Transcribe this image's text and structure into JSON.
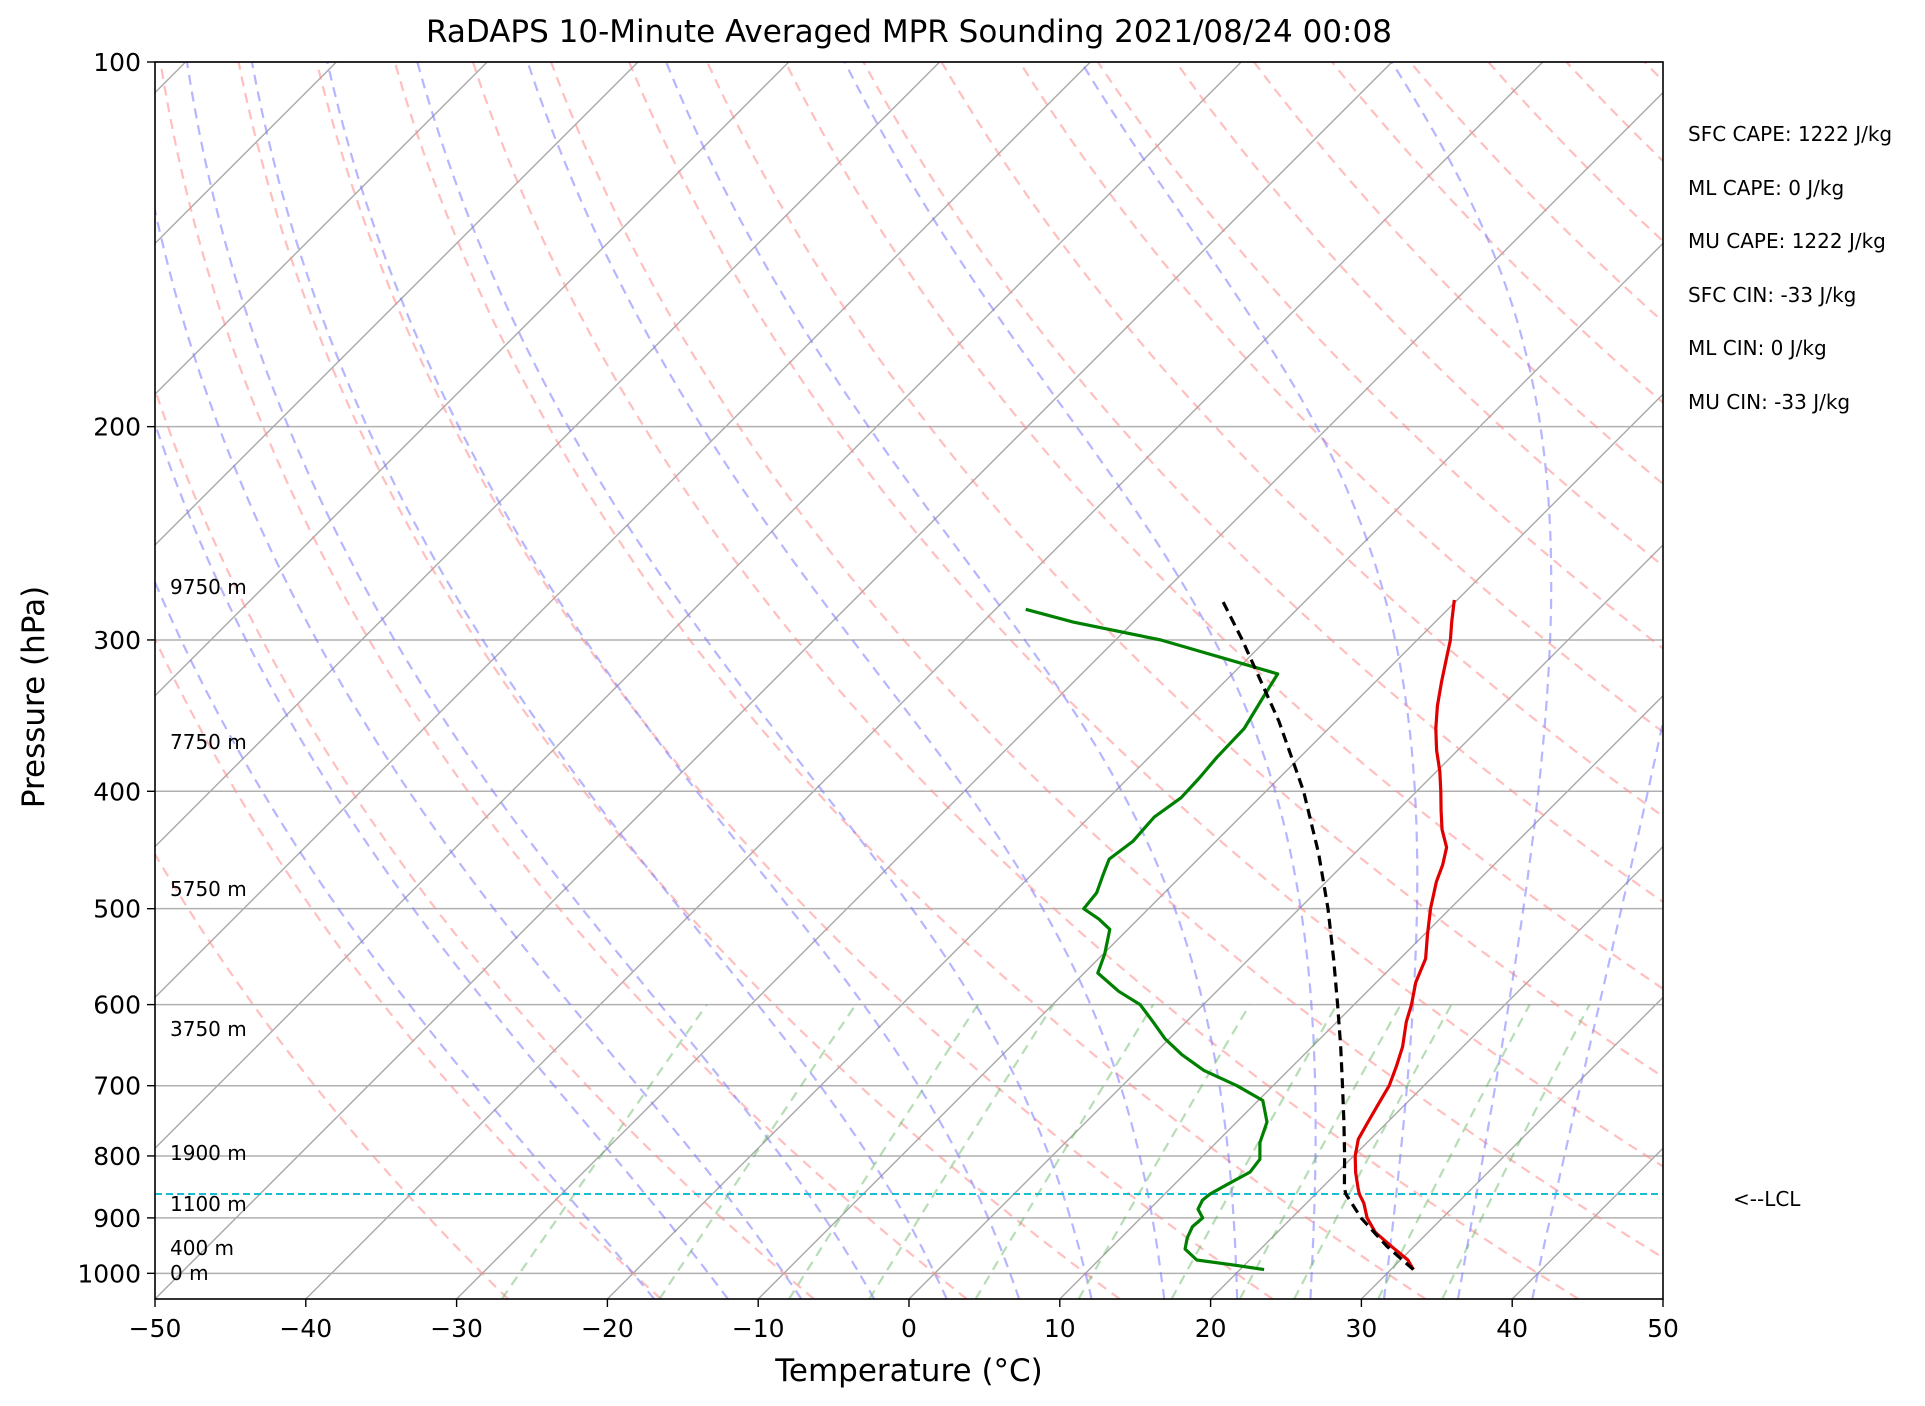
{
  "chart_data": {
    "type": "line",
    "chart_kind": "skew-T log-P sounding",
    "title": "RaDAPS 10-Minute Averaged MPR Sounding 2021/08/24 00:08",
    "xlabel": "Temperature (°C)",
    "ylabel": "Pressure (hPa)",
    "xlim": [
      -50,
      50
    ],
    "ylim": [
      1050,
      100
    ],
    "y_scale": "log",
    "x_ticks": [
      -50,
      -40,
      -30,
      -20,
      -10,
      0,
      10,
      20,
      30,
      40,
      50
    ],
    "x_tick_labels": [
      "−50",
      "−40",
      "−30",
      "−20",
      "−10",
      "0",
      "10",
      "20",
      "30",
      "40",
      "50"
    ],
    "y_ticks": [
      100,
      200,
      300,
      400,
      500,
      600,
      700,
      800,
      900,
      1000
    ],
    "y_tick_labels": [
      "100",
      "200",
      "300",
      "400",
      "500",
      "600",
      "700",
      "800",
      "900",
      "1000"
    ],
    "grid": true,
    "series": [
      {
        "role": "temperature",
        "color": "#e00000",
        "style": "solid",
        "points": [
          [
            993,
            31.5
          ],
          [
            975,
            30.5
          ],
          [
            950,
            28.5
          ],
          [
            925,
            26.5
          ],
          [
            900,
            25.0
          ],
          [
            875,
            23.8
          ],
          [
            860,
            22.9
          ],
          [
            850,
            22.4
          ],
          [
            825,
            21.2
          ],
          [
            800,
            20.1
          ],
          [
            775,
            19.2
          ],
          [
            750,
            18.7
          ],
          [
            725,
            18.2
          ],
          [
            700,
            17.7
          ],
          [
            675,
            16.9
          ],
          [
            650,
            16.0
          ],
          [
            620,
            14.6
          ],
          [
            600,
            13.8
          ],
          [
            575,
            12.6
          ],
          [
            550,
            11.7
          ],
          [
            525,
            10.2
          ],
          [
            500,
            8.7
          ],
          [
            475,
            7.3
          ],
          [
            460,
            6.6
          ],
          [
            445,
            5.7
          ],
          [
            430,
            4.2
          ],
          [
            415,
            2.9
          ],
          [
            400,
            1.6
          ],
          [
            385,
            0.2
          ],
          [
            370,
            -1.4
          ],
          [
            355,
            -2.9
          ],
          [
            340,
            -4.3
          ],
          [
            325,
            -5.6
          ],
          [
            310,
            -6.9
          ],
          [
            300,
            -7.8
          ],
          [
            290,
            -8.9
          ],
          [
            278,
            -10.2
          ]
        ]
      },
      {
        "role": "dewpoint",
        "color": "#008000",
        "style": "solid",
        "points": [
          [
            993,
            21.6
          ],
          [
            985,
            19.5
          ],
          [
            975,
            16.5
          ],
          [
            955,
            15.0
          ],
          [
            935,
            14.4
          ],
          [
            915,
            14.0
          ],
          [
            900,
            14.1
          ],
          [
            885,
            13.2
          ],
          [
            870,
            12.9
          ],
          [
            860,
            13.0
          ],
          [
            845,
            13.5
          ],
          [
            825,
            14.2
          ],
          [
            805,
            14.0
          ],
          [
            780,
            12.9
          ],
          [
            750,
            12.0
          ],
          [
            720,
            10.3
          ],
          [
            700,
            7.6
          ],
          [
            680,
            4.4
          ],
          [
            660,
            1.9
          ],
          [
            640,
            -0.3
          ],
          [
            620,
            -2.2
          ],
          [
            600,
            -4.2
          ],
          [
            585,
            -6.5
          ],
          [
            565,
            -9.1
          ],
          [
            545,
            -9.9
          ],
          [
            520,
            -11.2
          ],
          [
            510,
            -12.6
          ],
          [
            500,
            -14.3
          ],
          [
            485,
            -14.5
          ],
          [
            470,
            -15.2
          ],
          [
            455,
            -15.9
          ],
          [
            440,
            -15.5
          ],
          [
            420,
            -15.7
          ],
          [
            405,
            -15.2
          ],
          [
            390,
            -15.3
          ],
          [
            375,
            -15.5
          ],
          [
            355,
            -15.6
          ],
          [
            335,
            -16.4
          ],
          [
            320,
            -17.0
          ],
          [
            300,
            -27.0
          ],
          [
            290,
            -34.0
          ],
          [
            283,
            -38.0
          ]
        ]
      },
      {
        "role": "parcel",
        "color": "#000000",
        "style": "dashed",
        "points": [
          [
            993,
            31.5
          ],
          [
            950,
            28.2
          ],
          [
            900,
            24.6
          ],
          [
            860,
            22.0
          ],
          [
            850,
            21.5
          ],
          [
            800,
            19.4
          ],
          [
            750,
            17.1
          ],
          [
            700,
            14.6
          ],
          [
            650,
            11.9
          ],
          [
            600,
            8.9
          ],
          [
            550,
            5.6
          ],
          [
            500,
            1.9
          ],
          [
            450,
            -2.4
          ],
          [
            400,
            -7.5
          ],
          [
            350,
            -13.8
          ],
          [
            300,
            -21.6
          ],
          [
            278,
            -25.6
          ]
        ]
      }
    ],
    "lcl_hpa": 860,
    "altitude_labels": [
      {
        "p": 1000,
        "text": "0 m"
      },
      {
        "p": 962,
        "text": "400 m"
      },
      {
        "p": 888,
        "text": "1100 m"
      },
      {
        "p": 806,
        "text": "1900 m"
      },
      {
        "p": 633,
        "text": "3750 m"
      },
      {
        "p": 489,
        "text": "5750 m"
      },
      {
        "p": 376,
        "text": "7750 m"
      },
      {
        "p": 282,
        "text": "9750 m"
      }
    ],
    "stats": [
      "SFC CAPE: 1222 J/kg",
      "ML CAPE: 0 J/kg",
      "MU CAPE: 1222 J/kg",
      "SFC CIN: -33 J/kg",
      "ML CIN: 0 J/kg",
      "MU CIN: -33 J/kg"
    ],
    "lcl_label": "<--LCL",
    "reference_lines": {
      "isotherm_color": "#a9a9a9",
      "dry_adiabat_color": "#ff8a8a",
      "moist_adiabat_color": "#7a7aff",
      "mixing_ratio_color": "#5fb35f",
      "lcl_line_color": "#17becf"
    }
  }
}
